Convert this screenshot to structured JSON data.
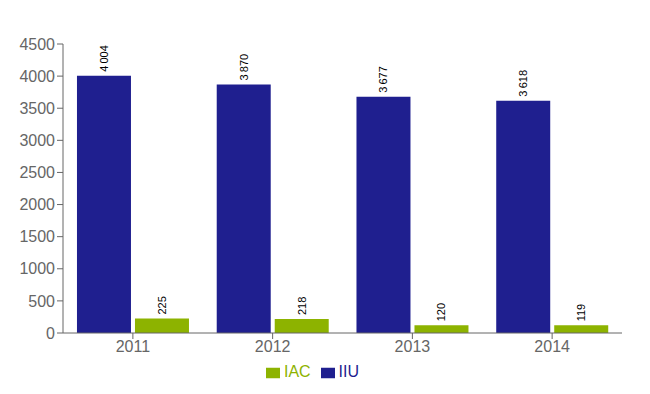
{
  "chart_data": {
    "type": "bar",
    "categories": [
      "2011",
      "2012",
      "2013",
      "2014"
    ],
    "series": [
      {
        "name": "IIU",
        "color": "#1F1F8F",
        "values": [
          4004,
          3870,
          3677,
          3618
        ],
        "value_labels": [
          "4 004",
          "3 870",
          "3 677",
          "3 618"
        ]
      },
      {
        "name": "IAC",
        "color": "#8DB300",
        "values": [
          225,
          218,
          120,
          119
        ]
      }
    ],
    "ylim": [
      0,
      4500
    ],
    "yticks": [
      0,
      500,
      1000,
      1500,
      2000,
      2500,
      3000,
      3500,
      4000,
      4500
    ],
    "grid": false,
    "legend": "bottom",
    "data_labels": true
  }
}
